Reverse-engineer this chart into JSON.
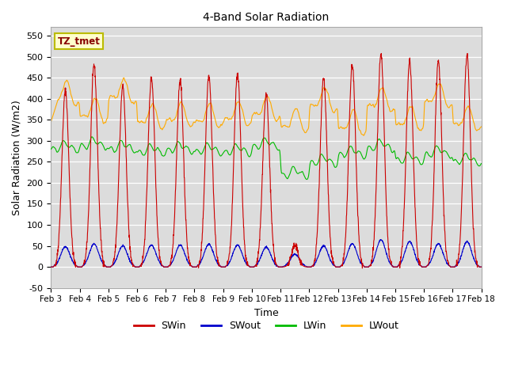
{
  "title": "4-Band Solar Radiation",
  "xlabel": "Time",
  "ylabel": "Solar Radiation (W/m2)",
  "ylim": [
    -50,
    570
  ],
  "yticks": [
    -50,
    0,
    50,
    100,
    150,
    200,
    250,
    300,
    350,
    400,
    450,
    500,
    550
  ],
  "bg_color": "#dcdcdc",
  "fig_color": "#ffffff",
  "legend_label": "TZ_tmet",
  "colors": {
    "SWin": "#cc0000",
    "SWout": "#0000cc",
    "LWin": "#00bb00",
    "LWout": "#ffaa00"
  },
  "num_days": 15,
  "start_day": 3,
  "peaks_SWin": [
    420,
    480,
    430,
    450,
    445,
    455,
    460,
    410,
    50,
    450,
    480,
    505,
    490,
    490,
    505
  ],
  "peaks_SWout": [
    48,
    55,
    50,
    52,
    52,
    54,
    52,
    47,
    30,
    50,
    55,
    65,
    60,
    55,
    60
  ],
  "lwin_day_avgs": [
    278,
    285,
    278,
    270,
    275,
    272,
    270,
    285,
    215,
    245,
    265,
    280,
    250,
    265,
    248
  ],
  "lwout_day_avgs": [
    390,
    350,
    395,
    335,
    340,
    337,
    342,
    355,
    325,
    375,
    320,
    375,
    330,
    385,
    330
  ]
}
